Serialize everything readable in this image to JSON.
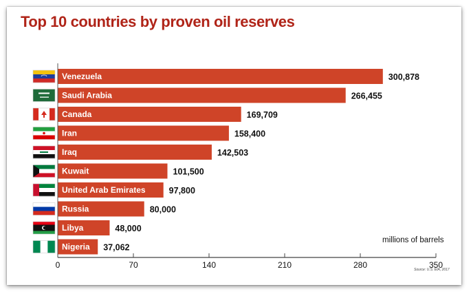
{
  "chart_data": {
    "type": "bar",
    "orientation": "horizontal",
    "title": "Top 10 countries by proven oil reserves",
    "unit_label": "millions of barrels",
    "source": "Source: U.S. EIA, 2017",
    "categories": [
      "Venezuela",
      "Saudi Arabia",
      "Canada",
      "Iran",
      "Iraq",
      "Kuwait",
      "United Arab Emirates",
      "Russia",
      "Libya",
      "Nigeria"
    ],
    "values": [
      300878,
      266455,
      169709,
      158400,
      142503,
      101500,
      97800,
      80000,
      48000,
      37062
    ],
    "value_labels": [
      "300,878",
      "266,455",
      "169,709",
      "158,400",
      "142,503",
      "101,500",
      "97,800",
      "80,000",
      "48,000",
      "37,062"
    ],
    "flag_icons": [
      "venezuela-flag-icon",
      "saudi-arabia-flag-icon",
      "canada-flag-icon",
      "iran-flag-icon",
      "iraq-flag-icon",
      "kuwait-flag-icon",
      "uae-flag-icon",
      "russia-flag-icon",
      "libya-flag-icon",
      "nigeria-flag-icon"
    ],
    "x_ticks": [
      "0",
      "70",
      "140",
      "210",
      "280",
      "350"
    ],
    "xlim": [
      0,
      350000
    ],
    "bar_color": "#cf4428",
    "title_color": "#b02418",
    "grid": false,
    "legend": "none"
  }
}
